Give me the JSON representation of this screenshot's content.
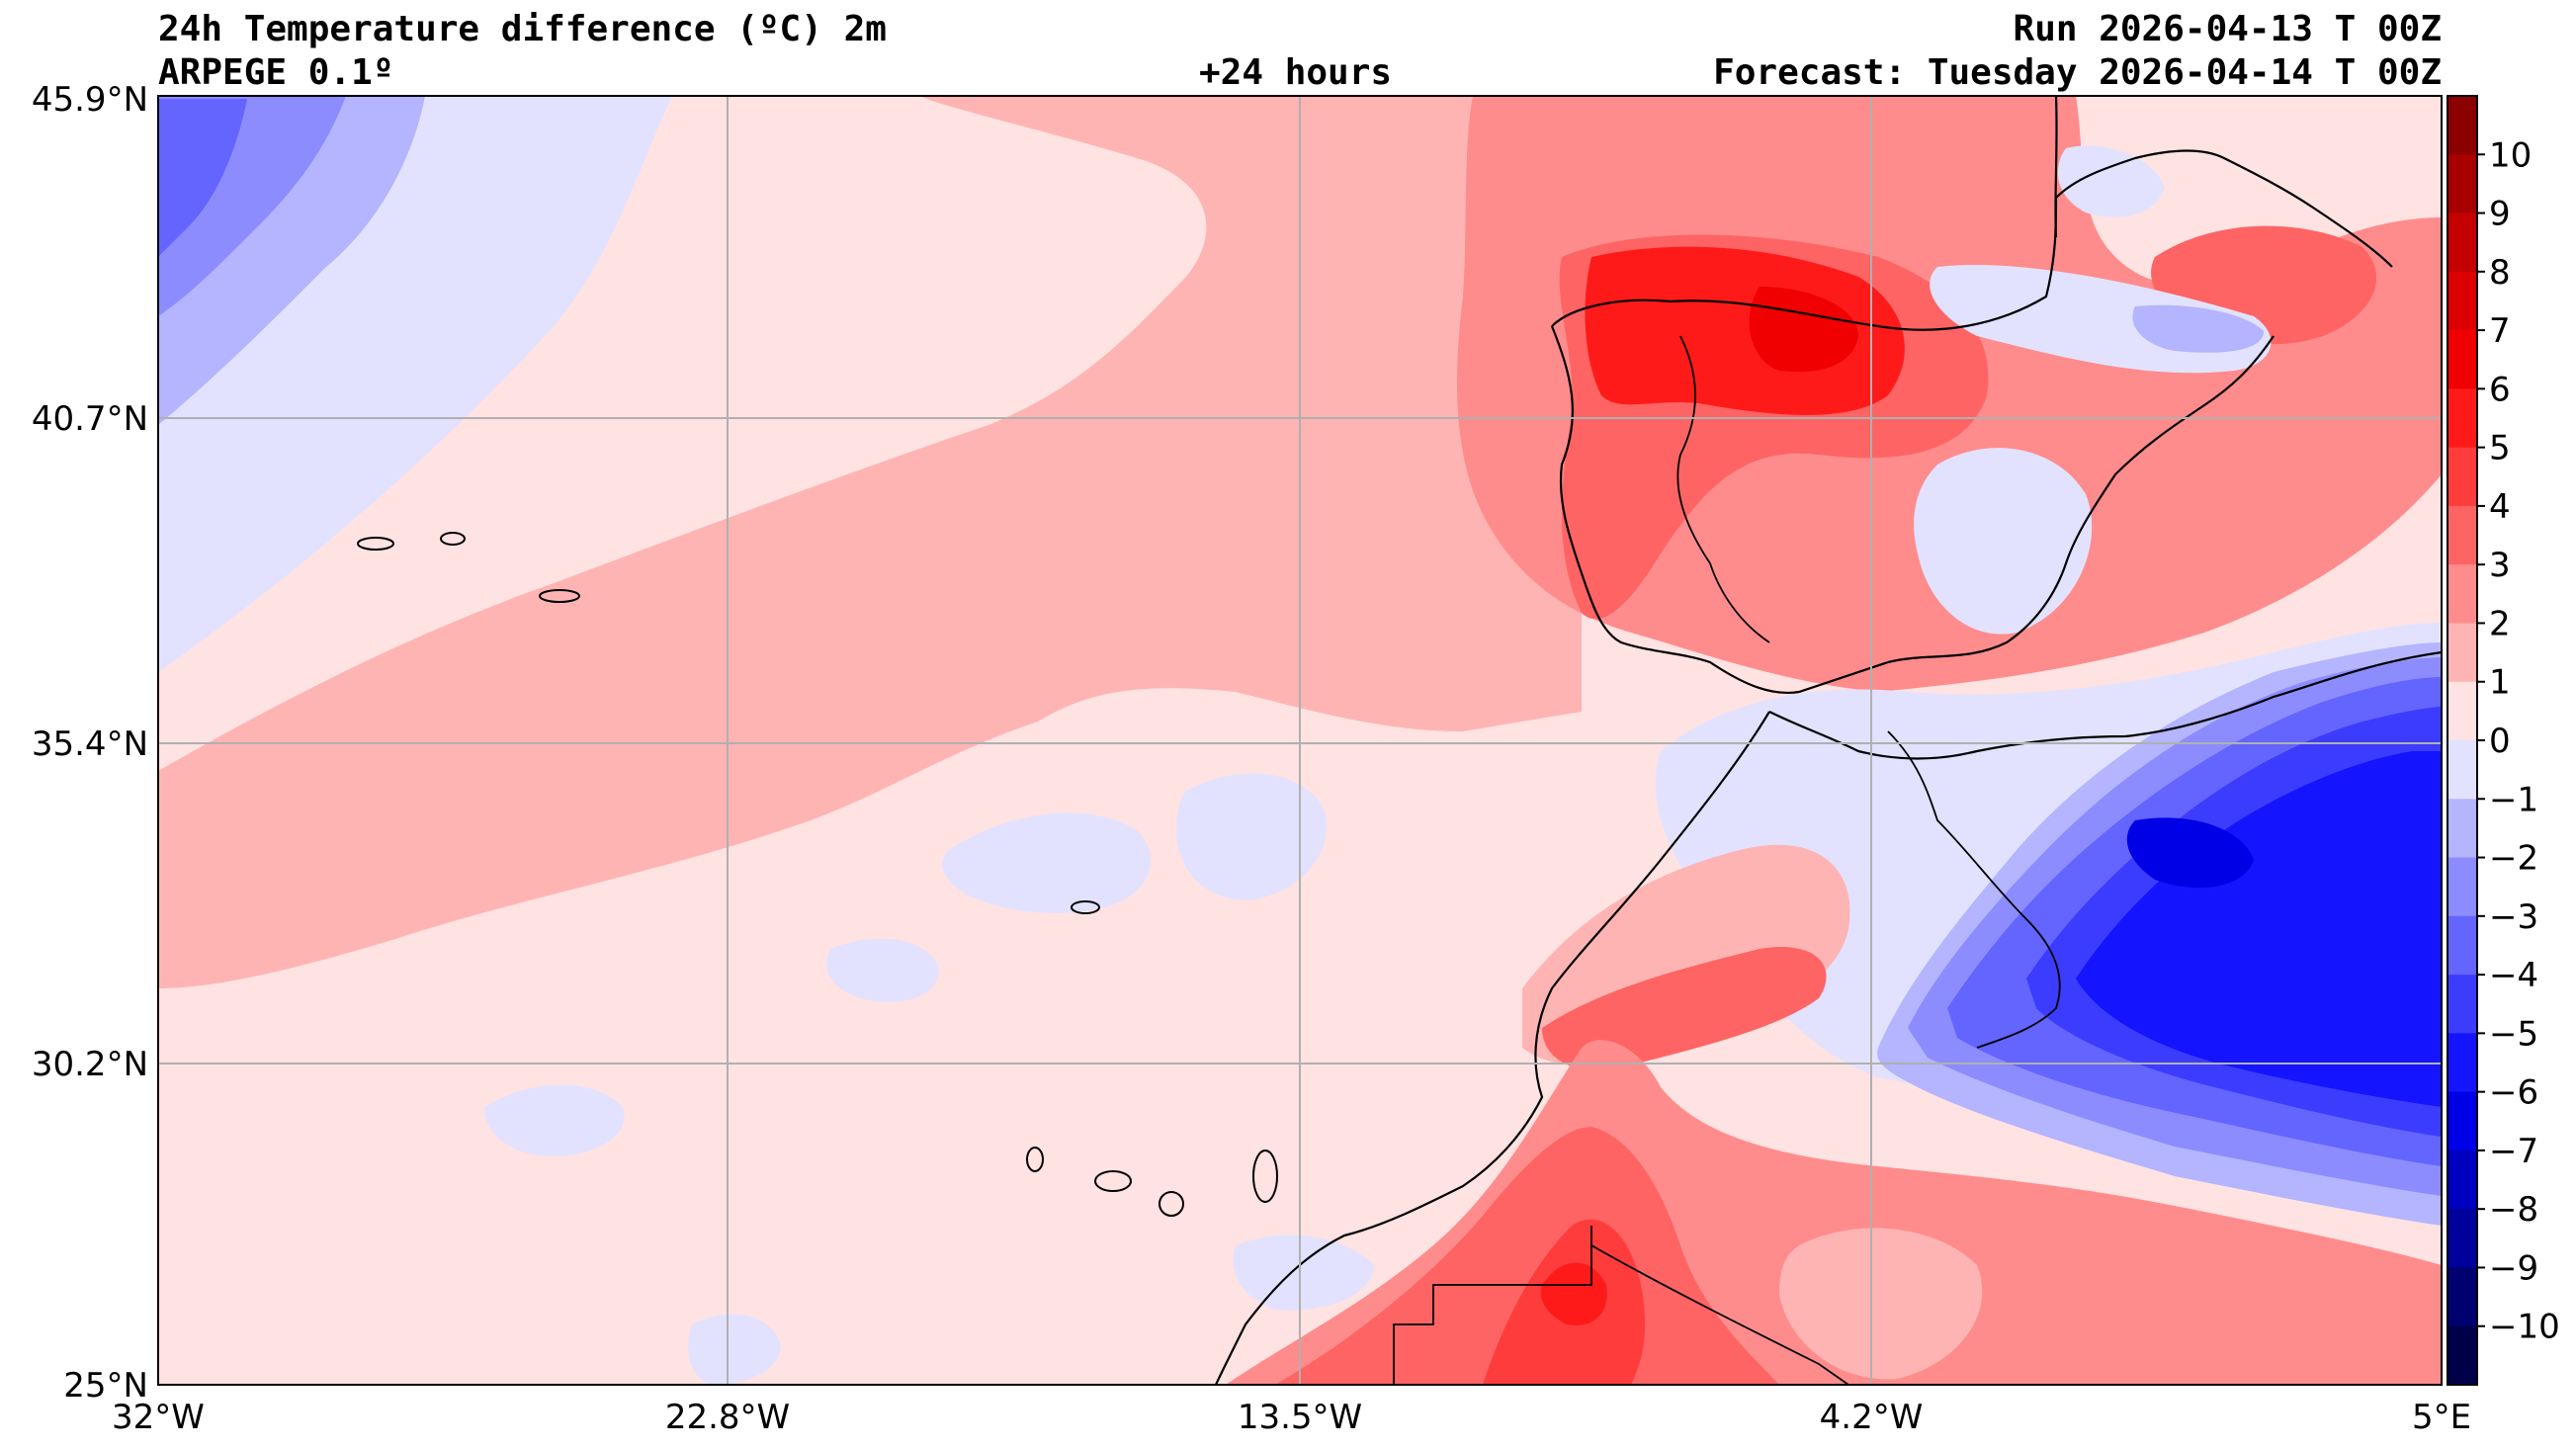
{
  "header": {
    "title": "24h Temperature difference (ºC) 2m",
    "model": "ARPEGE 0.1º",
    "lead": "+24 hours",
    "run": "Run 2026-04-13 T 00Z",
    "forecast": "Forecast: Tuesday 2026-04-14 T 00Z"
  },
  "axes": {
    "lat_labels": [
      "45.9°N",
      "40.7°N",
      "35.4°N",
      "30.2°N",
      "25°N"
    ],
    "lon_labels": [
      "32°W",
      "22.8°W",
      "13.5°W",
      "4.2°W",
      "5°E"
    ]
  },
  "colorbar": {
    "labels": [
      "10",
      "9",
      "8",
      "7",
      "6",
      "5",
      "4",
      "3",
      "2",
      "1",
      "0",
      "−1",
      "−2",
      "−3",
      "−4",
      "−5",
      "−6",
      "−7",
      "−8",
      "−9",
      "−10"
    ],
    "colors": [
      "#8b0000",
      "#a80000",
      "#c40000",
      "#dd0000",
      "#f00000",
      "#ff1a1a",
      "#ff3c3c",
      "#ff6464",
      "#ff8c8c",
      "#ffb4b4",
      "#ffe2e2",
      "#e2e2ff",
      "#b4b4ff",
      "#8c8cff",
      "#6464ff",
      "#3c3cff",
      "#1414ff",
      "#0000e6",
      "#0000c0",
      "#00009a",
      "#00006e",
      "#00004a"
    ]
  },
  "map": {
    "extent": {
      "lon_min": -32,
      "lon_max": 5,
      "lat_min": 25,
      "lat_max": 45.9
    },
    "colors": {
      "light_blue": "#e2e2ff",
      "blue2": "#b4b4ff",
      "blue3": "#8c8cff",
      "blue4": "#6464ff",
      "blue5": "#3c3cff",
      "blue6": "#1414ff",
      "blue7": "#0000e6",
      "light_pink": "#ffe2e2",
      "pink": "#ffb4b4",
      "salmon": "#ff8c8c",
      "red3": "#ff6464",
      "red4": "#ff3c3c",
      "red5": "#ff1a1a",
      "red6": "#f00000"
    }
  }
}
